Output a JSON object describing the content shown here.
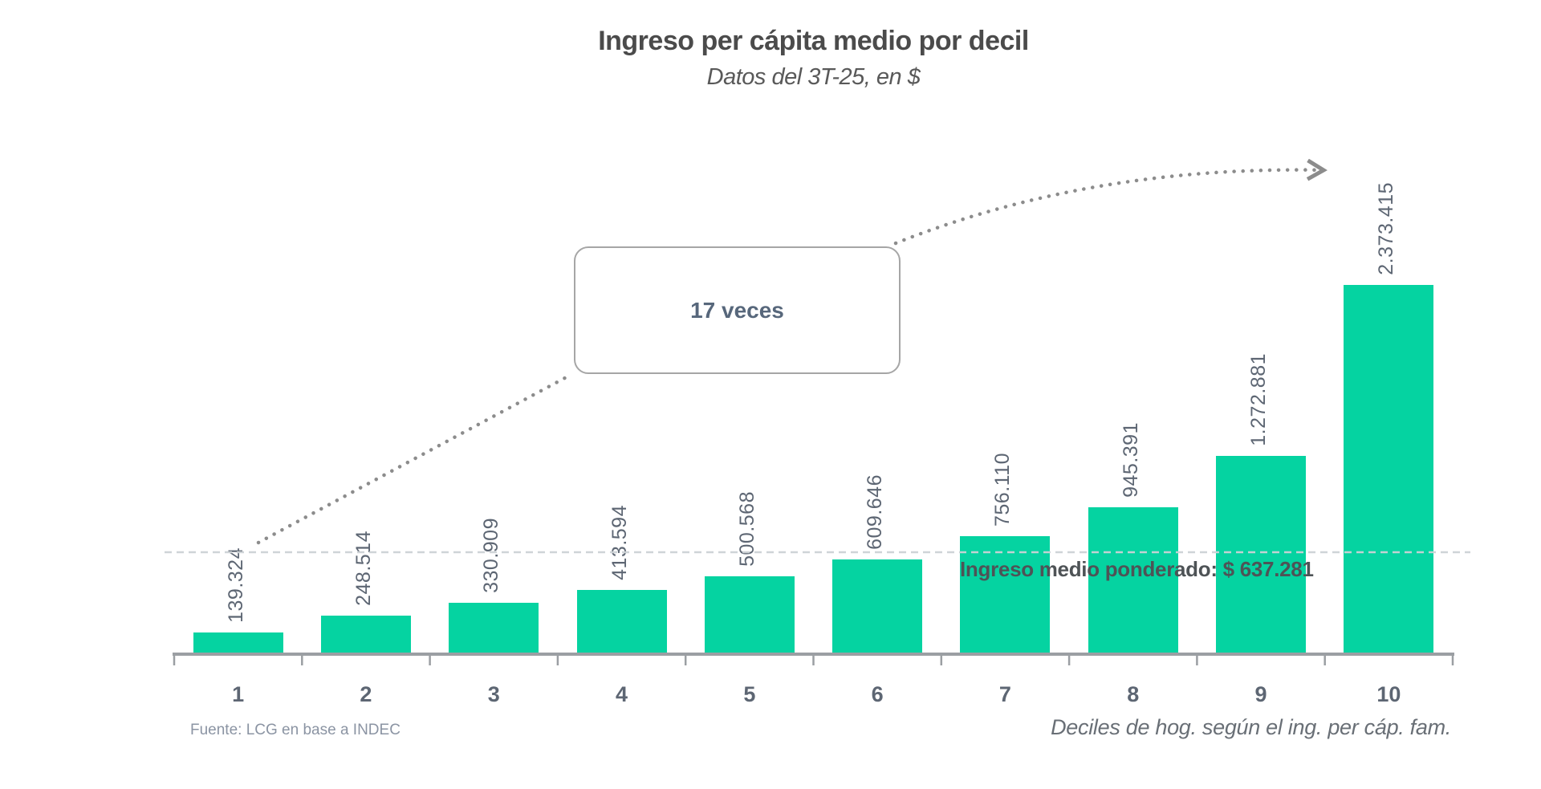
{
  "page": {
    "background": "#ffffff"
  },
  "chart_data": {
    "type": "bar",
    "title": "Ingreso per cápita medio por decil",
    "subtitle": "Datos del 3T-25, en $",
    "categories": [
      "1",
      "2",
      "3",
      "4",
      "5",
      "6",
      "7",
      "8",
      "9",
      "10"
    ],
    "values": [
      139324,
      248514,
      330909,
      413594,
      500568,
      609646,
      756110,
      945391,
      1272881,
      2373415
    ],
    "value_labels": [
      "139.324",
      "248.514",
      "330.909",
      "413.594",
      "500.568",
      "609.646",
      "756.110",
      "945.391",
      "1.272.881",
      "2.373.415"
    ],
    "xlabel": "Deciles de hog. según el ing. per cáp. fam.",
    "ylabel": "",
    "ylim": [
      0,
      2500000
    ],
    "legend_position": "none",
    "grid": "dashed horizontal mean line only",
    "bar_color": "#05d3a1",
    "label_color": "#5d6673",
    "annotations": {
      "callout": "17 veces",
      "mean_line_value": 637281,
      "mean_label": "Ingreso medio ponderado: $ 637.281",
      "arrow": "dotted arrow from decile 1 through callout to decile 10"
    },
    "source": "Fuente: LCG en base a INDEC"
  }
}
